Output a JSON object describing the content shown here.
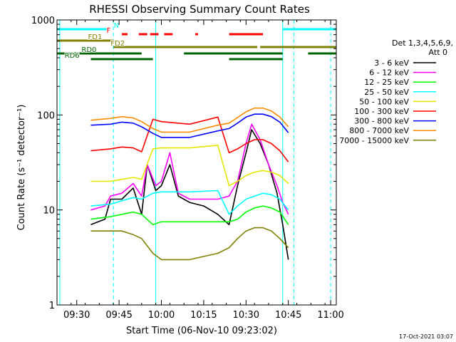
{
  "chart_data": {
    "type": "line",
    "title": "RHESSI Observing Summary Count Rates",
    "xlabel": "Start Time (06-Nov-10 09:23:02)",
    "ylabel": "Count Rate (s⁻¹ detector⁻¹)",
    "y_scale": "log",
    "ylim": [
      1,
      1000
    ],
    "x_unit": "UT time of day",
    "xlim": [
      "09:23",
      "11:02"
    ],
    "x_ticks": [
      "09:30",
      "09:45",
      "10:00",
      "10:15",
      "10:30",
      "10:45",
      "11:00"
    ],
    "y_ticks": [
      "1",
      "10",
      "100",
      "1000"
    ],
    "grid": false,
    "legend_position": "right",
    "legend_header": [
      "Det 1,3,4,5,6,9,",
      "Att 0"
    ],
    "series": [
      {
        "name": "3 - 6 keV",
        "color": "#000000",
        "x": [
          "09:35",
          "09:40",
          "09:42",
          "09:46",
          "09:50",
          "09:53",
          "09:55",
          "09:58",
          "10:00",
          "10:03",
          "10:06",
          "10:10",
          "10:15",
          "10:20",
          "10:24",
          "10:27",
          "10:30",
          "10:32",
          "10:35",
          "10:38",
          "10:41",
          "10:43",
          "10:45"
        ],
        "y": [
          7,
          8,
          13,
          13,
          17,
          9,
          30,
          16,
          18,
          30,
          14,
          12,
          11,
          9,
          7,
          18,
          40,
          70,
          50,
          30,
          15,
          7,
          3
        ]
      },
      {
        "name": "6 - 12 keV",
        "color": "#ff00ff",
        "x": [
          "09:35",
          "09:40",
          "09:42",
          "09:46",
          "09:50",
          "09:53",
          "09:55",
          "09:58",
          "10:00",
          "10:03",
          "10:06",
          "10:10",
          "10:15",
          "10:20",
          "10:24",
          "10:27",
          "10:30",
          "10:32",
          "10:35",
          "10:38",
          "10:41",
          "10:43",
          "10:45"
        ],
        "y": [
          10,
          11,
          14,
          15,
          19,
          14,
          30,
          18,
          20,
          40,
          15,
          13,
          13,
          13,
          14,
          20,
          50,
          80,
          55,
          30,
          18,
          12,
          9
        ]
      },
      {
        "name": "12 - 25 keV",
        "color": "#00ff00",
        "x": [
          "09:35",
          "09:42",
          "09:46",
          "09:50",
          "09:53",
          "09:57",
          "10:00",
          "10:10",
          "10:20",
          "10:24",
          "10:27",
          "10:30",
          "10:33",
          "10:36",
          "10:39",
          "10:42",
          "10:45"
        ],
        "y": [
          8,
          8.5,
          9,
          9.5,
          9,
          7,
          7.5,
          7.5,
          7.5,
          7.5,
          8,
          9.5,
          10.5,
          11,
          10.5,
          9.5,
          7
        ]
      },
      {
        "name": "25 - 50 keV",
        "color": "#00ffff",
        "x": [
          "09:35",
          "09:42",
          "09:46",
          "09:50",
          "09:53",
          "09:57",
          "10:00",
          "10:10",
          "10:20",
          "10:24",
          "10:27",
          "10:30",
          "10:33",
          "10:36",
          "10:39",
          "10:42",
          "10:45"
        ],
        "y": [
          11,
          11.5,
          12.5,
          13.5,
          13,
          15,
          15.5,
          15.5,
          16,
          9,
          11,
          13,
          14,
          15,
          14.5,
          13,
          10
        ]
      },
      {
        "name": "50 - 100 keV",
        "color": "#e6e600",
        "x": [
          "09:35",
          "09:42",
          "09:46",
          "09:50",
          "09:53",
          "09:57",
          "10:00",
          "10:10",
          "10:20",
          "10:24",
          "10:27",
          "10:30",
          "10:33",
          "10:36",
          "10:39",
          "10:42",
          "10:45"
        ],
        "y": [
          20,
          20,
          21,
          22,
          21,
          44,
          45,
          45,
          48,
          18,
          20,
          23,
          25,
          26,
          25,
          23,
          19
        ]
      },
      {
        "name": "100 - 300 keV",
        "color": "#ff0000",
        "x": [
          "09:35",
          "09:42",
          "09:46",
          "09:50",
          "09:53",
          "09:57",
          "10:00",
          "10:10",
          "10:20",
          "10:24",
          "10:27",
          "10:30",
          "10:33",
          "10:36",
          "10:39",
          "10:42",
          "10:45"
        ],
        "y": [
          42,
          44,
          46,
          45,
          41,
          90,
          85,
          80,
          95,
          40,
          44,
          50,
          55,
          55,
          50,
          42,
          32
        ]
      },
      {
        "name": "300 - 800 keV",
        "color": "#0000ff",
        "x": [
          "09:35",
          "09:42",
          "09:46",
          "09:50",
          "09:53",
          "09:57",
          "10:00",
          "10:10",
          "10:20",
          "10:24",
          "10:27",
          "10:30",
          "10:33",
          "10:36",
          "10:39",
          "10:42",
          "10:45"
        ],
        "y": [
          78,
          80,
          84,
          82,
          75,
          64,
          58,
          58,
          68,
          72,
          82,
          95,
          102,
          102,
          96,
          84,
          65
        ]
      },
      {
        "name": "800 - 7000 keV",
        "color": "#ff8c00",
        "x": [
          "09:35",
          "09:42",
          "09:46",
          "09:50",
          "09:53",
          "09:57",
          "10:00",
          "10:10",
          "10:20",
          "10:24",
          "10:27",
          "10:30",
          "10:33",
          "10:36",
          "10:39",
          "10:42",
          "10:45"
        ],
        "y": [
          88,
          92,
          96,
          93,
          85,
          72,
          66,
          66,
          78,
          82,
          94,
          108,
          118,
          118,
          110,
          95,
          75
        ]
      },
      {
        "name": "7000 - 15000 keV",
        "color": "#808000",
        "x": [
          "09:35",
          "09:42",
          "09:46",
          "09:50",
          "09:53",
          "09:57",
          "10:00",
          "10:10",
          "10:20",
          "10:24",
          "10:27",
          "10:30",
          "10:33",
          "10:36",
          "10:39",
          "10:42",
          "10:45"
        ],
        "y": [
          6,
          6,
          6,
          5.5,
          5,
          3.5,
          3,
          3,
          3.5,
          4,
          5,
          6,
          6.5,
          6.5,
          6,
          5,
          4
        ]
      }
    ],
    "state_bars": [
      {
        "label": "N",
        "color": "#00ffff",
        "segments": [
          [
            "09:23",
            "09:42"
          ],
          [
            "10:43",
            "11:02"
          ]
        ]
      },
      {
        "label": "F",
        "color": "#ff0000",
        "segments": [
          [
            "09:46",
            "09:48"
          ],
          [
            "09:52",
            "09:55"
          ],
          [
            "09:56",
            "09:59"
          ],
          [
            "10:01",
            "10:04"
          ],
          [
            "10:12",
            "10:13"
          ],
          [
            "10:24",
            "10:36"
          ]
        ]
      },
      {
        "label": "FD1",
        "color": "#808000",
        "segments": [
          [
            "09:23",
            "09:43"
          ]
        ]
      },
      {
        "label": "FD2",
        "color": "#808000",
        "segments": [
          [
            "09:43",
            "10:34"
          ],
          [
            "10:35",
            "11:02"
          ]
        ]
      },
      {
        "label": "RD0",
        "color": "#006400",
        "segments": [
          [
            "09:23",
            "09:53"
          ],
          [
            "10:08",
            "10:43"
          ],
          [
            "10:52",
            "11:02"
          ]
        ]
      },
      {
        "label": "RD6",
        "color": "#006400",
        "segments": [
          [
            "09:35",
            "09:57"
          ],
          [
            "10:24",
            "10:43"
          ]
        ]
      }
    ],
    "vertical_markers": [
      {
        "time": "09:24",
        "style": "solid",
        "color": "#00ffff"
      },
      {
        "time": "09:43",
        "style": "dashed",
        "color": "#00ffff"
      },
      {
        "time": "09:58",
        "style": "solid",
        "color": "#00ffff"
      },
      {
        "time": "10:43",
        "style": "solid",
        "color": "#00ffff"
      },
      {
        "time": "10:47",
        "style": "dashed",
        "color": "#00ffff"
      },
      {
        "time": "11:00",
        "style": "dashed",
        "color": "#00ffff"
      }
    ]
  },
  "footer": {
    "timestamp": "17-Oct-2021 03:07"
  }
}
